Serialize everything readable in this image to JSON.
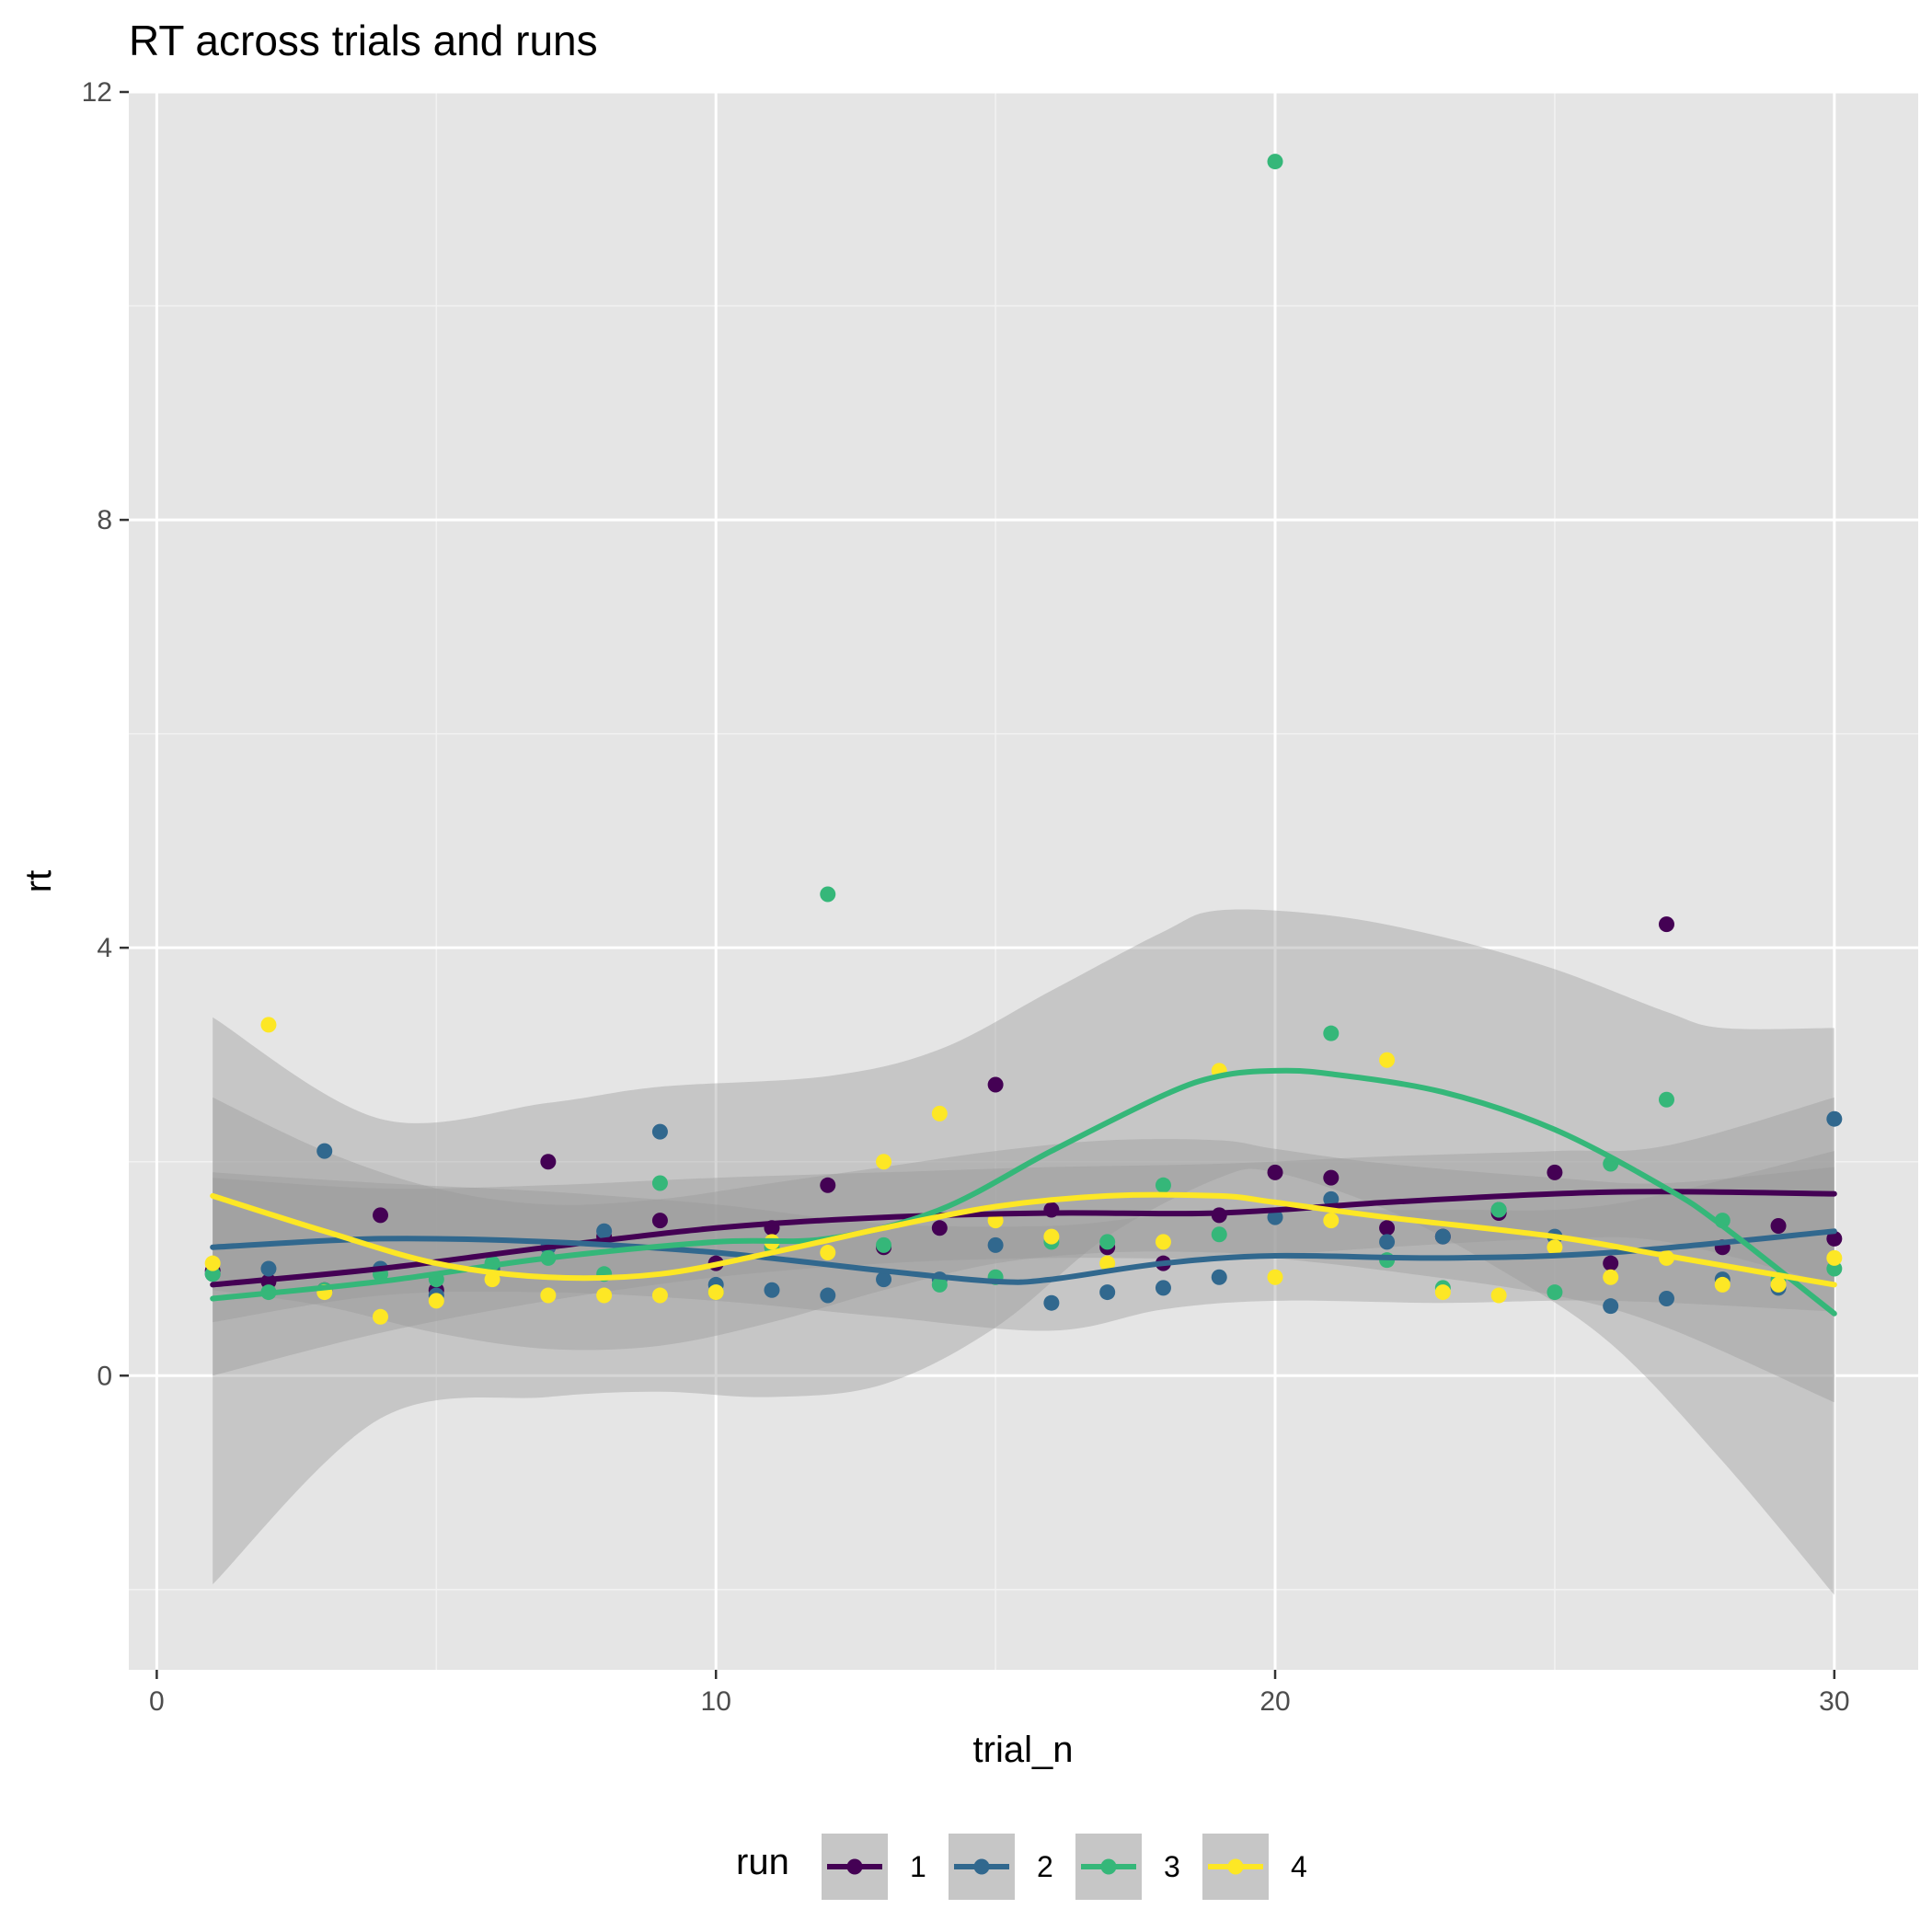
{
  "chart_data": {
    "type": "scatter",
    "title": "RT across trials and runs",
    "xlabel": "trial_n",
    "ylabel": "rt",
    "xlim": [
      -0.5,
      31.5
    ],
    "ylim": [
      -2.75,
      12.0
    ],
    "x_ticks": [
      0,
      10,
      20,
      30
    ],
    "x_tick_labels": [
      "0",
      "10",
      "20",
      "30"
    ],
    "x_minor_ticks": [
      5,
      15,
      25
    ],
    "y_ticks": [
      0,
      4,
      8,
      12
    ],
    "y_tick_labels": [
      "0",
      "4",
      "8",
      "12"
    ],
    "y_minor_ticks": [
      -2,
      2,
      6,
      10
    ],
    "grid": true,
    "legend_title": "run",
    "legend_position": "bottom",
    "series": [
      {
        "name": "1",
        "color": "#440154",
        "points": [
          [
            1,
            0.98
          ],
          [
            2,
            0.88
          ],
          [
            3,
            0.8
          ],
          [
            4,
            1.5
          ],
          [
            5,
            0.8
          ],
          [
            6,
            1.0
          ],
          [
            7,
            2.0
          ],
          [
            8,
            1.3
          ],
          [
            9,
            1.45
          ],
          [
            10,
            1.05
          ],
          [
            11,
            1.38
          ],
          [
            12,
            1.78
          ],
          [
            13,
            1.2
          ],
          [
            14,
            1.38
          ],
          [
            15,
            2.72
          ],
          [
            16,
            1.55
          ],
          [
            17,
            1.2
          ],
          [
            18,
            1.05
          ],
          [
            19,
            1.5
          ],
          [
            20,
            1.9
          ],
          [
            21,
            1.85
          ],
          [
            22,
            1.38
          ],
          [
            23,
            1.3
          ],
          [
            24,
            1.52
          ],
          [
            25,
            1.9
          ],
          [
            26,
            1.05
          ],
          [
            27,
            4.22
          ],
          [
            28,
            1.2
          ],
          [
            29,
            1.4
          ],
          [
            30,
            1.28
          ]
        ],
        "smooth": [
          [
            1,
            0.85
          ],
          [
            4,
            1.0
          ],
          [
            7,
            1.2
          ],
          [
            10,
            1.38
          ],
          [
            13,
            1.48
          ],
          [
            16,
            1.52
          ],
          [
            19,
            1.52
          ],
          [
            22,
            1.62
          ],
          [
            25,
            1.7
          ],
          [
            27,
            1.72
          ],
          [
            30,
            1.7
          ]
        ],
        "band_upper": [
          [
            1,
            1.85
          ],
          [
            4,
            1.75
          ],
          [
            7,
            1.78
          ],
          [
            10,
            1.85
          ],
          [
            13,
            1.9
          ],
          [
            16,
            1.95
          ],
          [
            19,
            1.98
          ],
          [
            22,
            2.05
          ],
          [
            25,
            2.1
          ],
          [
            27,
            2.15
          ],
          [
            30,
            2.6
          ]
        ],
        "band_lower": [
          [
            1,
            0.0
          ],
          [
            4,
            0.4
          ],
          [
            7,
            0.7
          ],
          [
            10,
            0.92
          ],
          [
            13,
            1.05
          ],
          [
            16,
            1.1
          ],
          [
            19,
            1.1
          ],
          [
            22,
            1.2
          ],
          [
            25,
            1.28
          ],
          [
            27,
            1.25
          ],
          [
            30,
            0.85
          ]
        ]
      },
      {
        "name": "2",
        "color": "#31688e",
        "points": [
          [
            1,
            0.95
          ],
          [
            2,
            1.0
          ],
          [
            3,
            2.1
          ],
          [
            4,
            1.0
          ],
          [
            5,
            0.75
          ],
          [
            6,
            1.0
          ],
          [
            7,
            1.2
          ],
          [
            8,
            1.35
          ],
          [
            9,
            2.28
          ],
          [
            10,
            0.85
          ],
          [
            11,
            0.8
          ],
          [
            12,
            0.75
          ],
          [
            13,
            0.9
          ],
          [
            14,
            0.9
          ],
          [
            15,
            1.22
          ],
          [
            16,
            0.68
          ],
          [
            17,
            0.78
          ],
          [
            18,
            0.82
          ],
          [
            19,
            0.92
          ],
          [
            20,
            1.48
          ],
          [
            21,
            1.65
          ],
          [
            22,
            1.25
          ],
          [
            23,
            1.3
          ],
          [
            24,
            1.55
          ],
          [
            25,
            1.3
          ],
          [
            26,
            0.65
          ],
          [
            27,
            0.72
          ],
          [
            28,
            0.9
          ],
          [
            29,
            0.82
          ],
          [
            30,
            2.4
          ]
        ],
        "smooth": [
          [
            1,
            1.2
          ],
          [
            4,
            1.28
          ],
          [
            7,
            1.25
          ],
          [
            10,
            1.15
          ],
          [
            13,
            0.98
          ],
          [
            15,
            0.88
          ],
          [
            16,
            0.9
          ],
          [
            18,
            1.05
          ],
          [
            20,
            1.12
          ],
          [
            23,
            1.1
          ],
          [
            26,
            1.15
          ],
          [
            30,
            1.35
          ]
        ],
        "band_upper": [
          [
            1,
            1.9
          ],
          [
            4,
            1.8
          ],
          [
            7,
            1.72
          ],
          [
            10,
            1.6
          ],
          [
            13,
            1.42
          ],
          [
            16,
            1.4
          ],
          [
            18,
            1.5
          ],
          [
            20,
            1.55
          ],
          [
            23,
            1.55
          ],
          [
            26,
            1.6
          ],
          [
            30,
            2.1
          ]
        ],
        "band_lower": [
          [
            1,
            0.5
          ],
          [
            4,
            0.75
          ],
          [
            7,
            0.78
          ],
          [
            10,
            0.7
          ],
          [
            13,
            0.55
          ],
          [
            16,
            0.42
          ],
          [
            18,
            0.62
          ],
          [
            20,
            0.7
          ],
          [
            23,
            0.68
          ],
          [
            26,
            0.7
          ],
          [
            30,
            0.6
          ]
        ]
      },
      {
        "name": "3",
        "color": "#35b779",
        "points": [
          [
            1,
            0.95
          ],
          [
            2,
            0.78
          ],
          [
            3,
            0.8
          ],
          [
            4,
            0.95
          ],
          [
            5,
            0.9
          ],
          [
            6,
            1.05
          ],
          [
            7,
            1.1
          ],
          [
            8,
            0.95
          ],
          [
            9,
            1.8
          ],
          [
            10,
            0.78
          ],
          [
            11,
            1.2
          ],
          [
            12,
            4.5
          ],
          [
            13,
            1.22
          ],
          [
            14,
            0.85
          ],
          [
            15,
            0.92
          ],
          [
            16,
            1.25
          ],
          [
            17,
            1.25
          ],
          [
            18,
            1.78
          ],
          [
            19,
            1.32
          ],
          [
            20,
            11.35
          ],
          [
            21,
            3.2
          ],
          [
            22,
            1.08
          ],
          [
            23,
            0.82
          ],
          [
            24,
            1.55
          ],
          [
            25,
            0.78
          ],
          [
            26,
            1.98
          ],
          [
            27,
            2.58
          ],
          [
            28,
            1.45
          ],
          [
            29,
            0.9
          ],
          [
            30,
            1.0
          ]
        ],
        "smooth": [
          [
            1,
            0.72
          ],
          [
            4,
            0.88
          ],
          [
            7,
            1.1
          ],
          [
            10,
            1.25
          ],
          [
            12,
            1.28
          ],
          [
            14,
            1.55
          ],
          [
            16,
            2.1
          ],
          [
            18,
            2.62
          ],
          [
            19,
            2.8
          ],
          [
            20,
            2.85
          ],
          [
            21,
            2.82
          ],
          [
            23,
            2.65
          ],
          [
            25,
            2.3
          ],
          [
            27,
            1.75
          ],
          [
            28,
            1.4
          ],
          [
            30,
            0.58
          ]
        ],
        "band_upper": [
          [
            1,
            3.35
          ],
          [
            4,
            2.4
          ],
          [
            7,
            2.55
          ],
          [
            9,
            2.7
          ],
          [
            12,
            2.8
          ],
          [
            14,
            3.05
          ],
          [
            16,
            3.6
          ],
          [
            18,
            4.15
          ],
          [
            19,
            4.35
          ],
          [
            21,
            4.3
          ],
          [
            23,
            4.1
          ],
          [
            25,
            3.8
          ],
          [
            27,
            3.4
          ],
          [
            28,
            3.25
          ],
          [
            30,
            3.25
          ]
        ],
        "band_lower": [
          [
            1,
            -1.95
          ],
          [
            4,
            -0.4
          ],
          [
            7,
            -0.2
          ],
          [
            9,
            -0.15
          ],
          [
            11,
            -0.2
          ],
          [
            13,
            -0.08
          ],
          [
            15,
            0.45
          ],
          [
            17,
            1.3
          ],
          [
            19,
            1.85
          ],
          [
            20,
            1.9
          ],
          [
            22,
            1.55
          ],
          [
            24,
            1.0
          ],
          [
            26,
            0.3
          ],
          [
            28,
            -0.8
          ],
          [
            30,
            -2.05
          ]
        ]
      },
      {
        "name": "4",
        "color": "#fde725",
        "points": [
          [
            1,
            1.05
          ],
          [
            2,
            3.28
          ],
          [
            3,
            0.78
          ],
          [
            4,
            0.55
          ],
          [
            5,
            0.7
          ],
          [
            6,
            0.9
          ],
          [
            7,
            0.75
          ],
          [
            8,
            0.75
          ],
          [
            9,
            0.75
          ],
          [
            10,
            0.78
          ],
          [
            11,
            1.25
          ],
          [
            12,
            1.15
          ],
          [
            13,
            2.0
          ],
          [
            14,
            2.45
          ],
          [
            15,
            1.45
          ],
          [
            16,
            1.3
          ],
          [
            17,
            1.05
          ],
          [
            18,
            1.25
          ],
          [
            19,
            2.85
          ],
          [
            20,
            0.92
          ],
          [
            21,
            1.45
          ],
          [
            22,
            2.95
          ],
          [
            23,
            0.78
          ],
          [
            24,
            0.75
          ],
          [
            25,
            1.2
          ],
          [
            26,
            0.92
          ],
          [
            27,
            1.1
          ],
          [
            28,
            0.85
          ],
          [
            29,
            0.85
          ],
          [
            30,
            1.1
          ]
        ],
        "smooth": [
          [
            1,
            1.68
          ],
          [
            3,
            1.35
          ],
          [
            5,
            1.05
          ],
          [
            7,
            0.92
          ],
          [
            9,
            0.95
          ],
          [
            11,
            1.15
          ],
          [
            13,
            1.38
          ],
          [
            15,
            1.58
          ],
          [
            17,
            1.68
          ],
          [
            19,
            1.68
          ],
          [
            20,
            1.62
          ],
          [
            22,
            1.48
          ],
          [
            25,
            1.3
          ],
          [
            27,
            1.12
          ],
          [
            30,
            0.85
          ]
        ],
        "band_upper": [
          [
            1,
            2.6
          ],
          [
            3,
            2.1
          ],
          [
            5,
            1.75
          ],
          [
            7,
            1.6
          ],
          [
            9,
            1.65
          ],
          [
            11,
            1.8
          ],
          [
            13,
            1.95
          ],
          [
            15,
            2.1
          ],
          [
            17,
            2.2
          ],
          [
            19,
            2.2
          ],
          [
            20,
            2.12
          ],
          [
            22,
            1.98
          ],
          [
            25,
            1.85
          ],
          [
            27,
            1.8
          ],
          [
            30,
            1.95
          ]
        ],
        "band_lower": [
          [
            1,
            0.8
          ],
          [
            3,
            0.65
          ],
          [
            5,
            0.4
          ],
          [
            7,
            0.25
          ],
          [
            9,
            0.28
          ],
          [
            11,
            0.5
          ],
          [
            13,
            0.8
          ],
          [
            15,
            1.05
          ],
          [
            17,
            1.15
          ],
          [
            19,
            1.15
          ],
          [
            20,
            1.1
          ],
          [
            22,
            0.98
          ],
          [
            25,
            0.75
          ],
          [
            27,
            0.45
          ],
          [
            30,
            -0.25
          ]
        ]
      }
    ]
  }
}
